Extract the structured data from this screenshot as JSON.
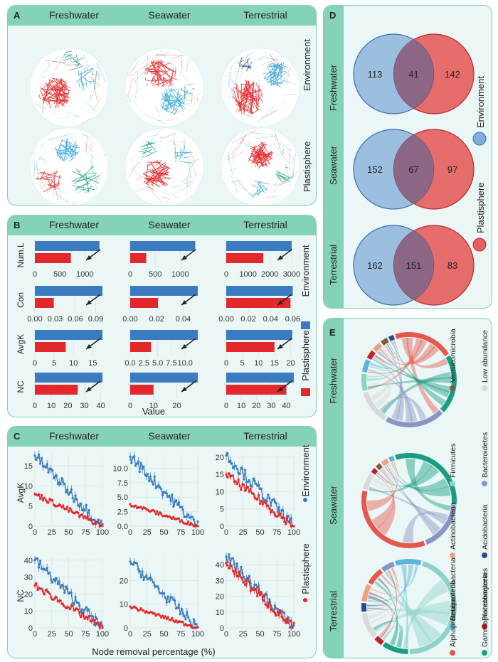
{
  "panels": {
    "a": {
      "label": "A",
      "columns": [
        "Freshwater",
        "Seawater",
        "Terrestrial"
      ],
      "rows": [
        "Environment",
        "Plastisphere"
      ]
    },
    "b": {
      "label": "B",
      "columns": [
        "Freshwater",
        "Seawater",
        "Terrestrial"
      ],
      "xlabel": "Value"
    },
    "c": {
      "label": "C",
      "columns": [
        "Freshwater",
        "Seawater",
        "Terrestrial"
      ],
      "xlabel": "Node removal percentage (%)"
    },
    "d": {
      "label": "D",
      "rows": [
        "Freshwater",
        "Seawater",
        "Terrestrial"
      ]
    },
    "e": {
      "label": "E",
      "rows": [
        "Freshwater",
        "Seawater",
        "Terrestrial"
      ]
    }
  },
  "legend_groups": {
    "environment": "Environment",
    "plastisphere": "Plastisphere"
  },
  "colors": {
    "environment": "#3b7bbf",
    "plastisphere": "#e3282b",
    "panel_bg": "#eaf7f6",
    "header": "#84d3b9"
  },
  "taxa_legend": [
    {
      "name": "Verrucomicrobia",
      "color": "#7a5c3e"
    },
    {
      "name": "Low abundance",
      "color": "#d9d9d9"
    },
    {
      "name": "Firmicutes",
      "color": "#8dd3c7"
    },
    {
      "name": "Bacteroidetes",
      "color": "#8b95c4"
    },
    {
      "name": "Actinobacteria",
      "color": "#f2a07b"
    },
    {
      "name": "Acidobacteria",
      "color": "#2e4a8c"
    },
    {
      "name": "Betaproteobacteria",
      "color": "#5bb5d9"
    },
    {
      "name": "Planctomycetes",
      "color": "#c81e2a"
    },
    {
      "name": "Alphaproteobacteria",
      "color": "#e8574d"
    },
    {
      "name": "Gammaproteobacteria",
      "color": "#1a9e83"
    }
  ],
  "chart_data": [
    {
      "type": "venn",
      "panel": "D",
      "sets": [
        "Environment",
        "Plastisphere"
      ],
      "data": [
        {
          "habitat": "Freshwater",
          "environment_only": 113,
          "shared": 41,
          "plastisphere_only": 142
        },
        {
          "habitat": "Seawater",
          "environment_only": 152,
          "shared": 67,
          "plastisphere_only": 97
        },
        {
          "habitat": "Terrestrial",
          "environment_only": 162,
          "shared": 151,
          "plastisphere_only": 83
        }
      ]
    },
    {
      "type": "bar",
      "panel": "B",
      "orientation": "horizontal",
      "xlabel": "Value",
      "metrics": [
        "Num.L",
        "Con",
        "AvgK",
        "NC"
      ],
      "series": [
        "Environment",
        "Plastisphere"
      ],
      "axes": {
        "Num.L": {
          "Freshwater": {
            "ticks": [
              "0",
              "500",
              "1000"
            ],
            "max": 1350
          },
          "Seawater": {
            "ticks": [
              "0",
              "500",
              "1000"
            ],
            "max": 1350
          },
          "Terrestrial": {
            "ticks": [
              "0",
              "1000",
              "2000",
              "3000"
            ],
            "max": 3100
          }
        },
        "Con": {
          "Freshwater": {
            "ticks": [
              "0.00",
              "0.03",
              "0.06",
              "0.09"
            ],
            "max": 0.1
          },
          "Seawater": {
            "ticks": [
              "0.00",
              "0.02",
              "0.04"
            ],
            "max": 0.051
          },
          "Terrestrial": {
            "ticks": [
              "0.00",
              "0.02",
              "0.04",
              "0.06"
            ],
            "max": 0.061
          }
        },
        "AvgK": {
          "Freshwater": {
            "ticks": [
              "0",
              "5",
              "10",
              "15"
            ],
            "max": 17.5
          },
          "Seawater": {
            "ticks": [
              "0.0",
              "2.5",
              "5.0",
              "7.5",
              "10.0"
            ],
            "max": 12.3
          },
          "Terrestrial": {
            "ticks": [
              "0",
              "5",
              "10",
              "15",
              "20"
            ],
            "max": 21
          }
        },
        "NC": {
          "Freshwater": {
            "ticks": [
              "0",
              "10",
              "20",
              "30",
              "40"
            ],
            "max": 41
          },
          "Seawater": {
            "ticks": [
              "0",
              "10",
              "20"
            ],
            "max": 29
          },
          "Terrestrial": {
            "ticks": [
              "0",
              "10",
              "20",
              "30",
              "40"
            ],
            "max": 45
          }
        }
      },
      "values": {
        "Num.L": {
          "Freshwater": {
            "Environment": 1290,
            "Plastisphere": 720
          },
          "Seawater": {
            "Environment": 1300,
            "Plastisphere": 320
          },
          "Terrestrial": {
            "Environment": 3000,
            "Plastisphere": 1700
          }
        },
        "Con": {
          "Freshwater": {
            "Environment": 0.1,
            "Plastisphere": 0.028
          },
          "Seawater": {
            "Environment": 0.051,
            "Plastisphere": 0.021
          },
          "Terrestrial": {
            "Environment": 0.06,
            "Plastisphere": 0.058
          }
        },
        "AvgK": {
          "Freshwater": {
            "Environment": 17.5,
            "Plastisphere": 8
          },
          "Seawater": {
            "Environment": 12.3,
            "Plastisphere": 3.8
          },
          "Terrestrial": {
            "Environment": 20.5,
            "Plastisphere": 15
          }
        },
        "NC": {
          "Freshwater": {
            "Environment": 41,
            "Plastisphere": 26
          },
          "Seawater": {
            "Environment": 29,
            "Plastisphere": 10
          },
          "Terrestrial": {
            "Environment": 45,
            "Plastisphere": 40
          }
        }
      }
    },
    {
      "type": "line",
      "panel": "C",
      "xlabel": "Node removal percentage (%)",
      "metrics": [
        "AvgK",
        "NC"
      ],
      "x_ticks": [
        "0",
        "25",
        "50",
        "75",
        "100"
      ],
      "xlim": [
        0,
        100
      ],
      "axes": {
        "AvgK": {
          "Freshwater": {
            "ylim": [
              0,
              18
            ],
            "ticks": [
              "0",
              "5",
              "10",
              "15"
            ]
          },
          "Seawater": {
            "ylim": [
              0,
              12.5
            ],
            "ticks": [
              "0.0",
              "2.5",
              "5.0",
              "7.5",
              "10.0"
            ]
          },
          "Terrestrial": {
            "ylim": [
              0,
              21
            ],
            "ticks": [
              "0",
              "5",
              "10",
              "15",
              "20"
            ]
          }
        },
        "NC": {
          "Freshwater": {
            "ylim": [
              0,
              42
            ],
            "ticks": [
              "0",
              "10",
              "20",
              "30",
              "40"
            ]
          },
          "Seawater": {
            "ylim": [
              0,
              30
            ],
            "ticks": [
              "0",
              "10",
              "20"
            ]
          },
          "Terrestrial": {
            "ylim": [
              0,
              45
            ],
            "ticks": [
              "0",
              "10",
              "20",
              "30",
              "40"
            ]
          }
        }
      },
      "start_values": {
        "AvgK": {
          "Freshwater": {
            "Environment": 17.5,
            "Plastisphere": 8
          },
          "Seawater": {
            "Environment": 12,
            "Plastisphere": 3.8
          },
          "Terrestrial": {
            "Environment": 20.5,
            "Plastisphere": 15
          }
        },
        "NC": {
          "Freshwater": {
            "Environment": 40,
            "Plastisphere": 25
          },
          "Seawater": {
            "Environment": 28,
            "Plastisphere": 9
          },
          "Terrestrial": {
            "Environment": 45,
            "Plastisphere": 41
          }
        }
      }
    }
  ]
}
